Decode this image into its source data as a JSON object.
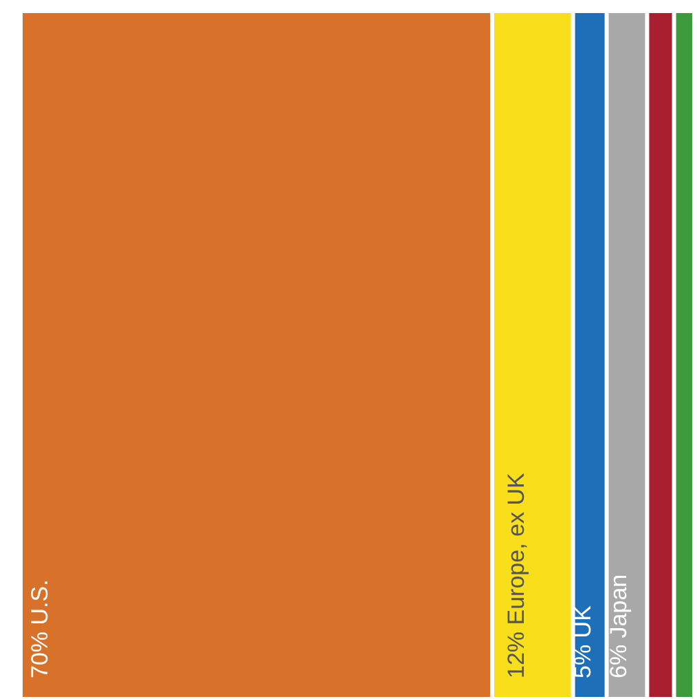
{
  "chart_data": {
    "type": "bar",
    "orientation": "horizontal",
    "stacked": true,
    "categories": [
      null
    ],
    "xlim": [
      0,
      100
    ],
    "tick_labels": false,
    "grid": false,
    "series": [
      {
        "color": "#d8722a",
        "values": [
          70
        ],
        "value_labels": [
          "70% U.S."
        ]
      },
      {
        "color": "#f9de1c",
        "values": [
          12
        ],
        "value_labels": [
          "12% Europe, ex UK"
        ]
      },
      {
        "color": "#1d6fb8",
        "values": [
          5
        ],
        "value_labels": [
          "5% UK"
        ]
      },
      {
        "color": "#a8a8a8",
        "values": [
          6
        ],
        "value_labels": [
          "6% Japan"
        ]
      },
      {
        "color": "#a82030",
        "values": [
          4
        ],
        "value_labels": [
          null
        ]
      },
      {
        "color": "#3c9a3c",
        "values": [
          3
        ],
        "value_labels": [
          null
        ]
      }
    ]
  }
}
